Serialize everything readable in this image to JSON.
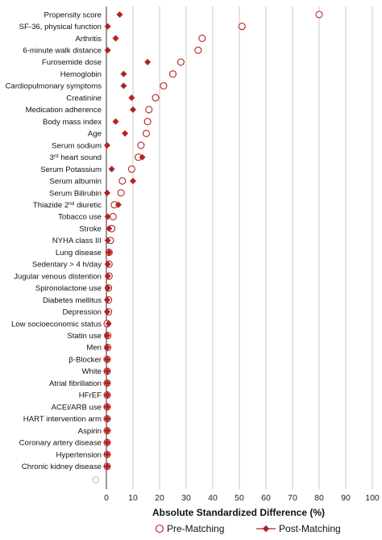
{
  "chart_data": {
    "type": "scatter",
    "orientation": "horizontal-dot-plot",
    "title": "",
    "xlabel": "Absolute Standardized Difference (%)",
    "ylabel": "",
    "xlim": [
      0,
      100
    ],
    "xticks": [
      0,
      10,
      20,
      30,
      40,
      50,
      60,
      70,
      80,
      90,
      100
    ],
    "grid": {
      "vertical": true,
      "horizontal": false
    },
    "legend_position": "bottom",
    "colors": {
      "pre": "#b22222",
      "post": "#b22222",
      "grid": "#c8c8c8",
      "axis": "#555555"
    },
    "categories": [
      {
        "label": "Propensity score",
        "pre": 80,
        "post": 5
      },
      {
        "label": "SF-36, physical function",
        "pre": 51,
        "post": 0.5
      },
      {
        "label": "Arthritis",
        "pre": 36,
        "post": 3.5
      },
      {
        "label": "6-minute walk distance",
        "pre": 34.5,
        "post": 0.5
      },
      {
        "label": "Furosemide dose",
        "pre": 28,
        "post": 15.5
      },
      {
        "label": "Hemoglobin",
        "pre": 25,
        "post": 6.5
      },
      {
        "label": "Cardiopulmonary symptoms",
        "pre": 21.5,
        "post": 6.5
      },
      {
        "label": "Creatinine",
        "pre": 18.5,
        "post": 9.5
      },
      {
        "label": "Medication adherence",
        "pre": 16,
        "post": 10
      },
      {
        "label": "Body mass index",
        "pre": 15.5,
        "post": 3.5
      },
      {
        "label": "Age",
        "pre": 15,
        "post": 7
      },
      {
        "label": "Serum sodium",
        "pre": 13,
        "post": 0.3
      },
      {
        "label": "3rd heart sound",
        "pre": 12,
        "post": 13.5
      },
      {
        "label": "Serum Potassium",
        "pre": 9.5,
        "post": 2
      },
      {
        "label": "Serum albumin",
        "pre": 6,
        "post": 10
      },
      {
        "label": "Serum Bilirubin",
        "pre": 5.5,
        "post": 0.3
      },
      {
        "label": "Thiazide 2nd diuretic",
        "pre": 3,
        "post": 4.5
      },
      {
        "label": "Tobacco use",
        "pre": 2.5,
        "post": 0.5
      },
      {
        "label": "Stroke",
        "pre": 2,
        "post": 1
      },
      {
        "label": "NYHA class III",
        "pre": 1.5,
        "post": 0.5
      },
      {
        "label": "Lung disease",
        "pre": 1,
        "post": 1
      },
      {
        "label": "Sedentary > 4 h/day",
        "pre": 1,
        "post": 0.5
      },
      {
        "label": "Jugular venous distention",
        "pre": 1,
        "post": 0.5
      },
      {
        "label": "Spironolactone use",
        "pre": 0.8,
        "post": 0.5
      },
      {
        "label": "Diabetes mellitus",
        "pre": 0.8,
        "post": 0.3
      },
      {
        "label": "Depression",
        "pre": 0.8,
        "post": 0.3
      },
      {
        "label": "Low socioeconomic status",
        "pre": 0.3,
        "post": 0.8
      },
      {
        "label": "Statin use",
        "pre": 0.5,
        "post": 0.3
      },
      {
        "label": "Men",
        "pre": 0.5,
        "post": 0.3
      },
      {
        "label": "β-Blocker",
        "pre": 0.3,
        "post": 0.3
      },
      {
        "label": "White",
        "pre": 0.3,
        "post": 0.3
      },
      {
        "label": "Atrial fibrillation",
        "pre": 0.3,
        "post": 0.3
      },
      {
        "label": "HFrEF",
        "pre": 0.3,
        "post": 0.3
      },
      {
        "label": "ACEi/ARB use",
        "pre": 0.3,
        "post": 0.3
      },
      {
        "label": "HART intervention arm",
        "pre": 0.3,
        "post": 0.3
      },
      {
        "label": "Aspirin",
        "pre": 0.3,
        "post": 0.3
      },
      {
        "label": "Coronary artery disease",
        "pre": 0.3,
        "post": 0.3
      },
      {
        "label": "Hypertension",
        "pre": 0.3,
        "post": 0.3
      },
      {
        "label": "Chronic kidney disease",
        "pre": 0.3,
        "post": 0.3
      }
    ],
    "extra_points": [
      {
        "series": "pre",
        "x": -4
      }
    ],
    "series": [
      {
        "name": "Pre-Matching",
        "key": "pre",
        "marker": "open-circle"
      },
      {
        "name": "Post-Matching",
        "key": "post",
        "marker": "filled-diamond"
      }
    ]
  }
}
